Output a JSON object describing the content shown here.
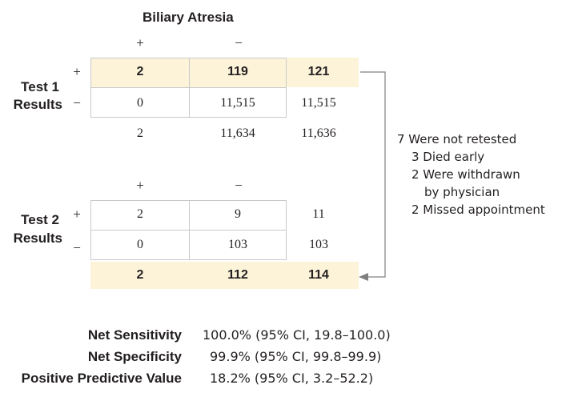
{
  "title": "Biliary Atresia",
  "column_signs": {
    "plus": "+",
    "minus": "−"
  },
  "test1": {
    "label_line1": "Test 1",
    "label_line2": "Results",
    "row_plus": {
      "sign": "+",
      "cells": [
        "2",
        "119",
        "121"
      ]
    },
    "row_minus": {
      "sign": "−",
      "cells": [
        "0",
        "11,515",
        "11,515"
      ]
    },
    "totals": [
      "2",
      "11,634",
      "11,636"
    ]
  },
  "test2": {
    "label_line1": "Test 2",
    "label_line2": "Results",
    "row_plus": {
      "sign": "+",
      "cells": [
        "2",
        "9",
        "11"
      ]
    },
    "row_minus": {
      "sign": "−",
      "cells": [
        "0",
        "103",
        "103"
      ]
    },
    "totals": [
      "2",
      "112",
      "114"
    ]
  },
  "retest_note": {
    "title": "7 Were not retested",
    "items": [
      "3 Died early",
      "2 Were withdrawn",
      "by physician",
      "2 Missed appointment"
    ]
  },
  "stats": [
    {
      "label": "Net Sensitivity",
      "value": "100.0% (95% CI, 19.8–100.0)"
    },
    {
      "label": "Net Specificity",
      "value": "99.9% (95% CI, 99.8–99.9)"
    },
    {
      "label": "Positive Predictive Value",
      "value": "18.2% (95% CI, 3.2–52.2)"
    }
  ],
  "colors": {
    "highlight": "#fcf3d9",
    "border": "#c9c9c9",
    "arrow": "#808080"
  }
}
